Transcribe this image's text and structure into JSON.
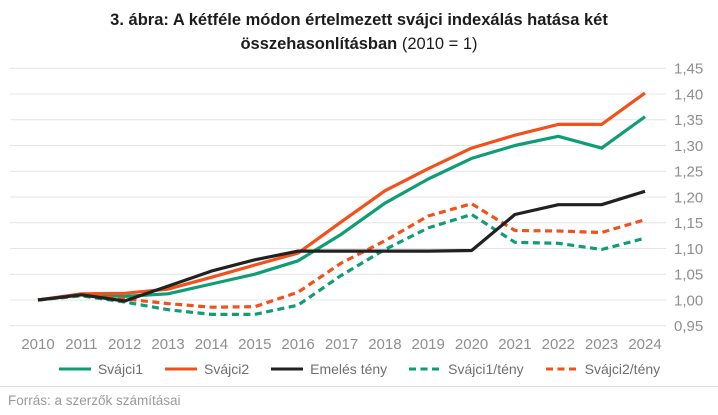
{
  "title": {
    "main": "3. ábra: A kétféle módon értelmezett svájci indexálás hatása két összehasonlításban",
    "suffix": " (2010 = 1)"
  },
  "source_note": "Forrás: a szerzők számításai",
  "colors": {
    "teal": "#0f9d76",
    "orange": "#f2511b",
    "black": "#212121",
    "grid": "#e4e4e4",
    "axis_text": "#8f8f8f",
    "legend_text": "#6f6f6f",
    "title_text": "#1c1c1c",
    "source_text": "#9a9a9a"
  },
  "chart_data": {
    "type": "line",
    "title": "3. ábra: A kétféle módon értelmezett svájci indexálás hatása két összehasonlításban (2010 = 1)",
    "x": [
      2010,
      2011,
      2012,
      2013,
      2014,
      2015,
      2016,
      2017,
      2018,
      2019,
      2020,
      2021,
      2022,
      2023,
      2024
    ],
    "x_tick_labels": [
      "2010",
      "2011",
      "2012",
      "2013",
      "2014",
      "2015",
      "2016",
      "2017",
      "2018",
      "2019",
      "2020",
      "2021",
      "2022",
      "2023",
      "2024"
    ],
    "y_ticks": [
      0.95,
      1.0,
      1.05,
      1.1,
      1.15,
      1.2,
      1.25,
      1.3,
      1.35,
      1.4,
      1.45
    ],
    "y_tick_labels": [
      "0,95",
      "1,00",
      "1,05",
      "1,10",
      "1,15",
      "1,20",
      "1,25",
      "1,30",
      "1,35",
      "1,40",
      "1,45"
    ],
    "ylim": [
      0.95,
      1.45
    ],
    "grid": true,
    "y_axis_side": "right",
    "legend_position": "bottom",
    "series": [
      {
        "id": "svajci1",
        "name": "Svájci1",
        "color_key": "teal",
        "dash": false,
        "z": 1,
        "values": [
          1.0,
          1.01,
          1.007,
          1.012,
          1.031,
          1.05,
          1.076,
          1.128,
          1.188,
          1.235,
          1.275,
          1.3,
          1.318,
          1.295,
          1.356
        ]
      },
      {
        "id": "svajci2",
        "name": "Svájci2",
        "color_key": "orange",
        "dash": false,
        "z": 2,
        "values": [
          1.0,
          1.012,
          1.013,
          1.021,
          1.044,
          1.068,
          1.091,
          1.152,
          1.212,
          1.255,
          1.295,
          1.32,
          1.341,
          1.341,
          1.402
        ]
      },
      {
        "id": "emeles-teny",
        "name": "Emelés tény",
        "color_key": "black",
        "dash": false,
        "z": 5,
        "values": [
          1.0,
          1.01,
          0.998,
          1.027,
          1.056,
          1.078,
          1.095,
          1.095,
          1.095,
          1.095,
          1.096,
          1.166,
          1.185,
          1.185,
          1.211
        ]
      },
      {
        "id": "svajci1-teny",
        "name": "Svájci1/tény",
        "color_key": "teal",
        "dash": true,
        "z": 3,
        "values": [
          1.0,
          1.008,
          0.996,
          0.981,
          0.972,
          0.972,
          0.99,
          1.048,
          1.098,
          1.14,
          1.166,
          1.112,
          1.11,
          1.098,
          1.12
        ]
      },
      {
        "id": "svajci2-teny",
        "name": "Svájci2/tény",
        "color_key": "orange",
        "dash": true,
        "z": 4,
        "values": [
          1.0,
          1.01,
          1.002,
          0.993,
          0.986,
          0.987,
          1.015,
          1.072,
          1.115,
          1.163,
          1.187,
          1.135,
          1.134,
          1.131,
          1.156
        ]
      }
    ]
  }
}
